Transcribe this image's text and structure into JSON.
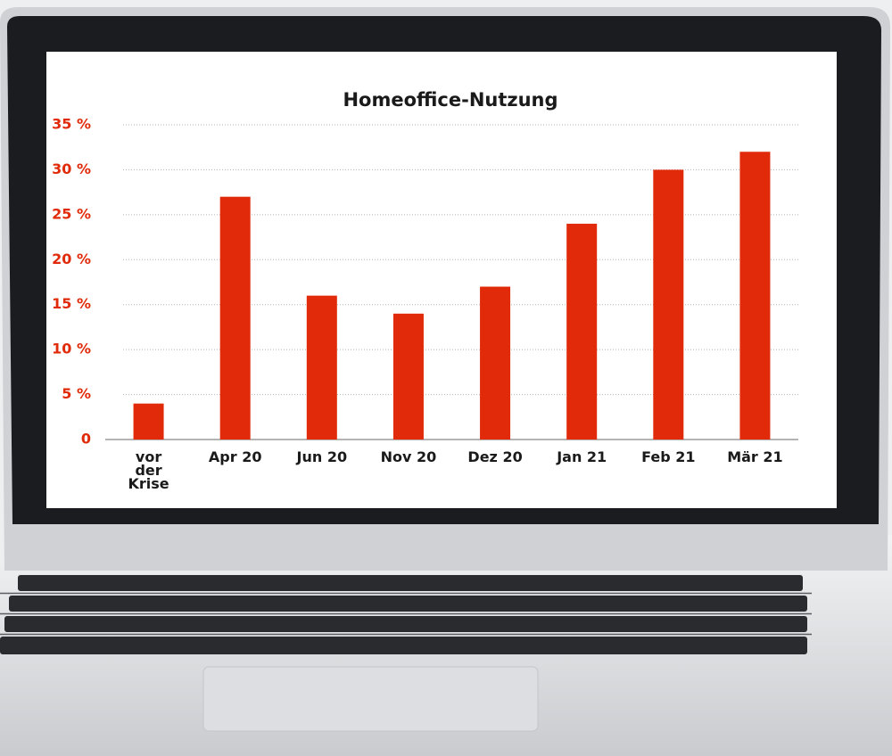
{
  "chart_data": {
    "type": "bar",
    "title": "Homeoffice-Nutzung",
    "categories": [
      "vor der Krise",
      "Apr 20",
      "Jun 20",
      "Nov 20",
      "Dez 20",
      "Jan 21",
      "Feb 21",
      "Mär 21"
    ],
    "values": [
      4,
      27,
      16,
      14,
      17,
      24,
      30,
      32
    ],
    "color": "#e02a0a",
    "ylim": [
      0,
      35
    ],
    "yticks": [
      0,
      {
        "value": 5,
        "label": "5 %"
      },
      {
        "value": 10,
        "label": "10 %"
      },
      {
        "value": 15,
        "label": "15 %"
      },
      {
        "value": 20,
        "label": "20 %"
      },
      {
        "value": 25,
        "label": "25 %"
      },
      {
        "value": 30,
        "label": "30 %"
      },
      {
        "value": 35,
        "label": "35 %"
      }
    ],
    "grid": true
  }
}
